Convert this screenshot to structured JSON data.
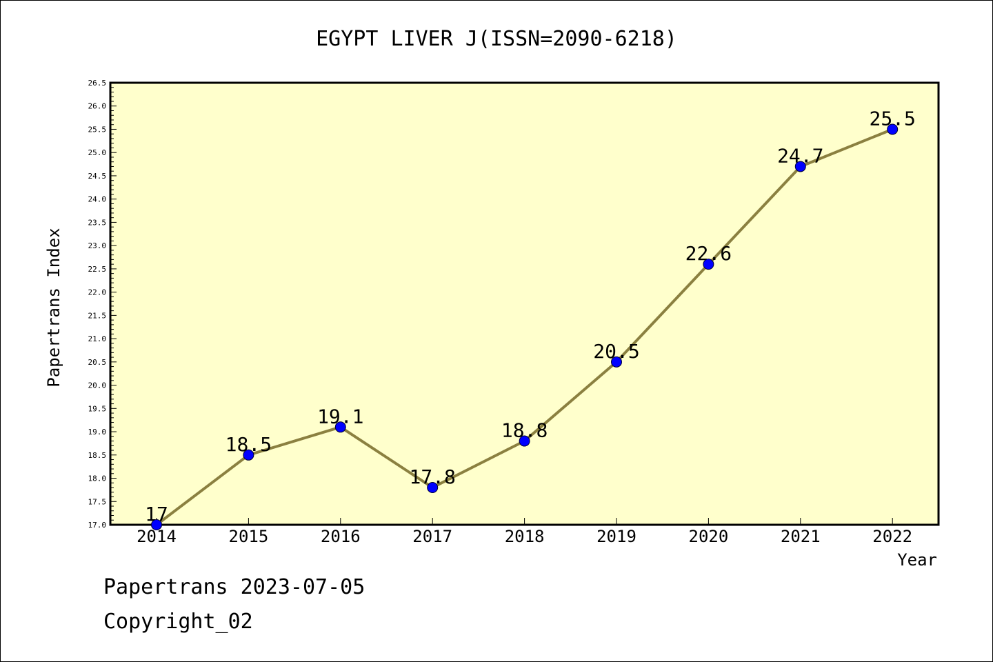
{
  "chart_data": {
    "type": "line",
    "title": "EGYPT LIVER J(ISSN=2090-6218)",
    "xlabel": "Year",
    "ylabel": "Papertrans Index",
    "categories": [
      "2014",
      "2015",
      "2016",
      "2017",
      "2018",
      "2019",
      "2020",
      "2021",
      "2022"
    ],
    "values": [
      17,
      18.5,
      19.1,
      17.8,
      18.8,
      20.5,
      22.6,
      24.7,
      25.5
    ],
    "data_labels": [
      "17",
      "18.5",
      "19.1",
      "17.8",
      "18.8",
      "20.5",
      "22.6",
      "24.7",
      "25.5"
    ],
    "ylim": [
      17.0,
      26.5
    ],
    "yticks": [
      "17.0",
      "17.5",
      "18.0",
      "18.5",
      "19.0",
      "19.5",
      "20.0",
      "20.5",
      "21.0",
      "21.5",
      "22.0",
      "22.5",
      "23.0",
      "23.5",
      "24.0",
      "24.5",
      "25.0",
      "25.5",
      "26.0",
      "26.5"
    ],
    "grid": false,
    "colors": {
      "plot_background": "#ffffcc",
      "line": "#8b8040",
      "marker": "#0000ff"
    }
  },
  "footer": {
    "source": "Papertrans 2023-07-05",
    "copyright": "Copyright_02"
  }
}
